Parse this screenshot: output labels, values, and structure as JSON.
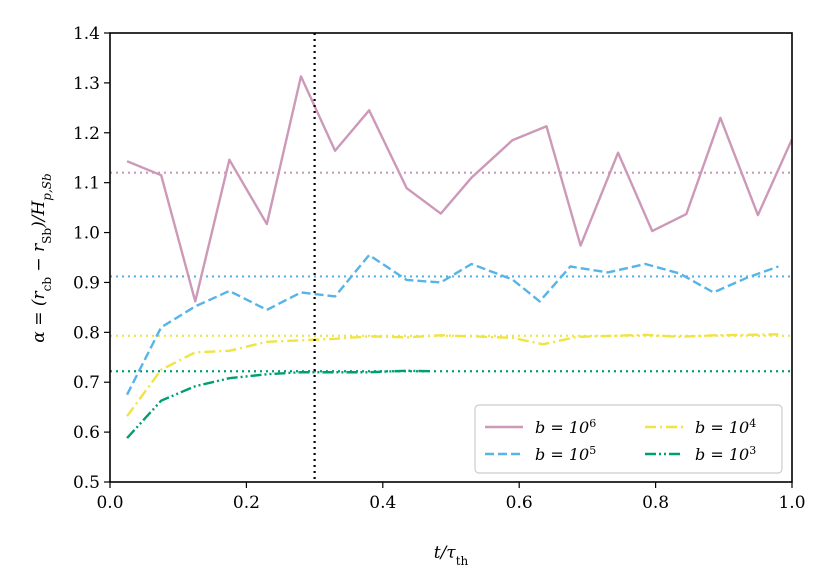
{
  "chart_data": {
    "type": "line",
    "xlabel": "t/τ",
    "xlabel_sub": "th",
    "ylabel": "α = (r",
    "ylabel_parts": [
      "α = (r",
      "cb",
      " − r",
      "Sb",
      ")/H",
      "p,Sb"
    ],
    "xlim": [
      0.0,
      1.0
    ],
    "ylim": [
      0.5,
      1.4
    ],
    "xticks": [
      0.0,
      0.2,
      0.4,
      0.6,
      0.8,
      1.0
    ],
    "xtick_labels": [
      "0.0",
      "0.2",
      "0.4",
      "0.6",
      "0.8",
      "1.0"
    ],
    "yticks": [
      0.5,
      0.6,
      0.7,
      0.8,
      0.9,
      1.0,
      1.1,
      1.2,
      1.3,
      1.4
    ],
    "ytick_labels": [
      "0.5",
      "0.6",
      "0.7",
      "0.8",
      "0.9",
      "1.0",
      "1.1",
      "1.2",
      "1.3",
      "1.4"
    ],
    "vline": {
      "x": 0.3,
      "color": "#000000",
      "style": "dotted"
    },
    "legend_placement": "lower-right",
    "series": [
      {
        "name": "b = 10",
        "exp": "6",
        "color": "#cc99b8",
        "style": "solid",
        "mean": 1.12,
        "x": [
          0.025,
          0.075,
          0.125,
          0.175,
          0.23,
          0.28,
          0.33,
          0.38,
          0.435,
          0.485,
          0.53,
          0.59,
          0.64,
          0.69,
          0.745,
          0.795,
          0.845,
          0.895,
          0.95,
          1.0
        ],
        "y": [
          1.143,
          1.115,
          0.862,
          1.146,
          1.017,
          1.313,
          1.164,
          1.245,
          1.089,
          1.038,
          1.11,
          1.185,
          1.213,
          0.974,
          1.16,
          1.003,
          1.037,
          1.23,
          1.035,
          1.187
        ]
      },
      {
        "name": "b = 10",
        "exp": "5",
        "color": "#56b4e9",
        "style": "dashed",
        "mean": 0.912,
        "x": [
          0.025,
          0.075,
          0.125,
          0.175,
          0.23,
          0.28,
          0.33,
          0.38,
          0.435,
          0.485,
          0.53,
          0.59,
          0.63,
          0.675,
          0.73,
          0.785,
          0.835,
          0.885,
          0.935,
          0.98
        ],
        "y": [
          0.675,
          0.81,
          0.852,
          0.883,
          0.845,
          0.88,
          0.872,
          0.955,
          0.905,
          0.9,
          0.937,
          0.906,
          0.862,
          0.932,
          0.92,
          0.937,
          0.918,
          0.88,
          0.91,
          0.932
        ]
      },
      {
        "name": "b = 10",
        "exp": "4",
        "color": "#f0e442",
        "style": "dashdot",
        "mean": 0.793,
        "x": [
          0.025,
          0.075,
          0.125,
          0.175,
          0.23,
          0.28,
          0.33,
          0.38,
          0.435,
          0.485,
          0.53,
          0.59,
          0.635,
          0.685,
          0.735,
          0.785,
          0.835,
          0.885,
          0.935,
          0.98
        ],
        "y": [
          0.632,
          0.725,
          0.76,
          0.763,
          0.781,
          0.784,
          0.787,
          0.792,
          0.79,
          0.794,
          0.792,
          0.789,
          0.776,
          0.791,
          0.793,
          0.795,
          0.791,
          0.794,
          0.795,
          0.796
        ]
      },
      {
        "name": "b = 10",
        "exp": "3",
        "color": "#009e73",
        "style": "dashdotdot",
        "mean": 0.722,
        "x": [
          0.025,
          0.075,
          0.125,
          0.175,
          0.23,
          0.28,
          0.33,
          0.38,
          0.435,
          0.47
        ],
        "y": [
          0.588,
          0.663,
          0.692,
          0.708,
          0.716,
          0.72,
          0.72,
          0.72,
          0.723,
          0.722
        ]
      }
    ]
  }
}
